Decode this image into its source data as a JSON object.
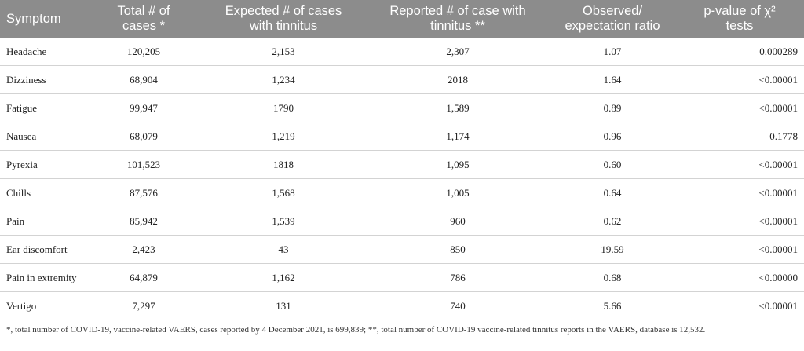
{
  "table": {
    "headers": [
      "Symptom",
      "Total # of\ncases *",
      "Expected # of cases\nwith tinnitus",
      "Reported # of case with\ntinnitus **",
      "Observed/\nexpectation ratio",
      "p-value of χ²\ntests"
    ],
    "rows": [
      [
        "Headache",
        "120,205",
        "2,153",
        "2,307",
        "1.07",
        "0.000289"
      ],
      [
        "Dizziness",
        "68,904",
        "1,234",
        "2018",
        "1.64",
        "<0.00001"
      ],
      [
        "Fatigue",
        "99,947",
        "1790",
        "1,589",
        "0.89",
        "<0.00001"
      ],
      [
        "Nausea",
        "68,079",
        "1,219",
        "1,174",
        "0.96",
        "0.1778"
      ],
      [
        "Pyrexia",
        "101,523",
        "1818",
        "1,095",
        "0.60",
        "<0.00001"
      ],
      [
        "Chills",
        "87,576",
        "1,568",
        "1,005",
        "0.64",
        "<0.00001"
      ],
      [
        "Pain",
        "85,942",
        "1,539",
        "960",
        "0.62",
        "<0.00001"
      ],
      [
        "Ear discomfort",
        "2,423",
        "43",
        "850",
        "19.59",
        "<0.00001"
      ],
      [
        "Pain in extremity",
        "64,879",
        "1,162",
        "786",
        "0.68",
        "<0.00000"
      ],
      [
        "Vertigo",
        "7,297",
        "131",
        "740",
        "5.66",
        "<0.00001"
      ]
    ]
  },
  "footnote": "*, total number of COVID-19, vaccine-related VAERS, cases reported by 4 December 2021, is 699,839; **, total number of COVID-19 vaccine-related tinnitus reports in the VAERS, database is 12,532."
}
